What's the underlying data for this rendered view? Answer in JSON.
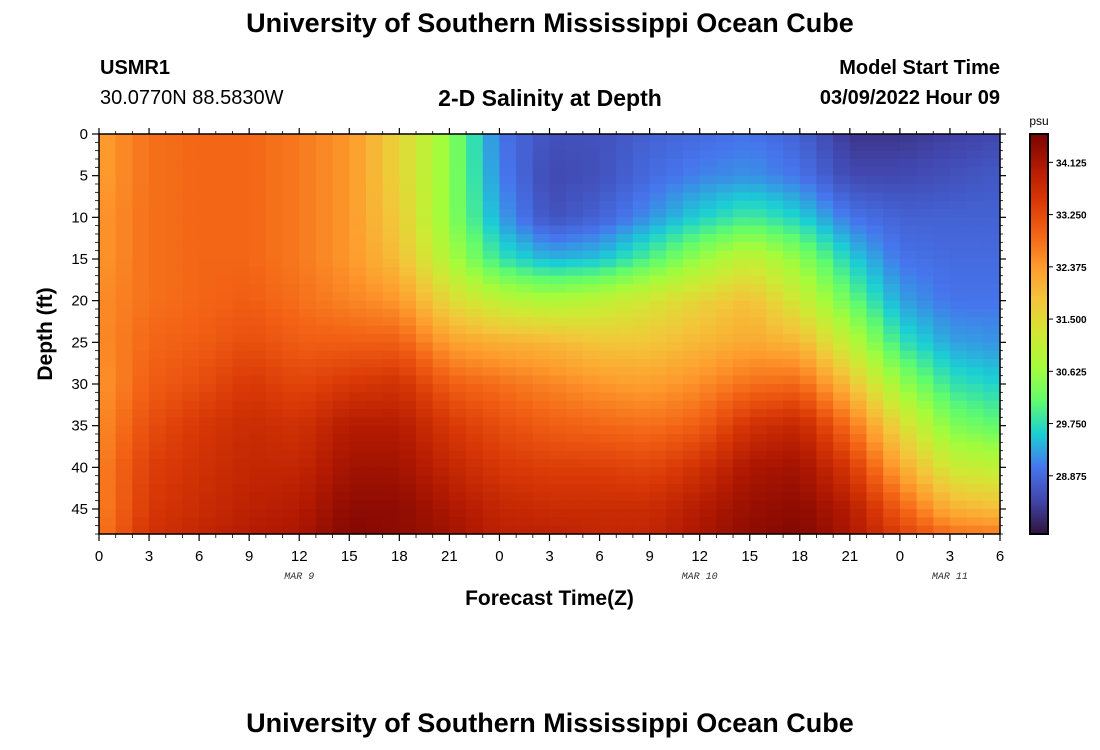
{
  "header": {
    "title": "University of Southern Mississippi Ocean Cube",
    "station_id": "USMR1",
    "station_coords": "30.0770N  88.5830W",
    "plot_title": "2-D Salinity at Depth",
    "model_start_label": "Model Start Time",
    "model_start_value": "03/09/2022 Hour 09"
  },
  "footer": {
    "title": "University of Southern Mississippi Ocean Cube"
  },
  "chart_data": {
    "type": "heatmap",
    "title": "2-D Salinity at Depth",
    "xlabel": "Forecast Time(Z)",
    "ylabel": "Depth (ft)",
    "x_unit": "hours from Mar 9 00Z",
    "xlim": [
      0,
      54
    ],
    "ylim": [
      0,
      48
    ],
    "x_ticks": [
      {
        "h": 0,
        "label": "0"
      },
      {
        "h": 3,
        "label": "3"
      },
      {
        "h": 6,
        "label": "6"
      },
      {
        "h": 9,
        "label": "9"
      },
      {
        "h": 12,
        "label": "12"
      },
      {
        "h": 15,
        "label": "15"
      },
      {
        "h": 18,
        "label": "18"
      },
      {
        "h": 21,
        "label": "21"
      },
      {
        "h": 24,
        "label": "0"
      },
      {
        "h": 27,
        "label": "3"
      },
      {
        "h": 30,
        "label": "6"
      },
      {
        "h": 33,
        "label": "9"
      },
      {
        "h": 36,
        "label": "12"
      },
      {
        "h": 39,
        "label": "15"
      },
      {
        "h": 42,
        "label": "18"
      },
      {
        "h": 45,
        "label": "21"
      },
      {
        "h": 48,
        "label": "0"
      },
      {
        "h": 51,
        "label": "3"
      },
      {
        "h": 54,
        "label": "6"
      }
    ],
    "date_labels": [
      {
        "h": 12,
        "label": "MAR 9"
      },
      {
        "h": 36,
        "label": "MAR 10"
      },
      {
        "h": 51,
        "label": "MAR 11"
      }
    ],
    "y_ticks": [
      0,
      5,
      10,
      15,
      20,
      25,
      30,
      35,
      40,
      45
    ],
    "colorbar": {
      "unit": "psu",
      "min": 27.9,
      "max": 34.6,
      "tick_values": [
        34.125,
        33.25,
        32.375,
        31.5,
        30.625,
        29.75,
        28.875
      ],
      "tick_labels": [
        "34.125",
        "33.250",
        "32.375",
        "31.500",
        "30.625",
        "29.750",
        "28.875"
      ],
      "colors": [
        "#30123b",
        "#4145ab",
        "#4675ed",
        "#1bcfd4",
        "#61fc6c",
        "#a4fc3b",
        "#d1e834",
        "#f3c63a",
        "#fe9b2d",
        "#f36315",
        "#d93806",
        "#b11901",
        "#7a0403"
      ]
    },
    "depths": [
      0,
      5,
      10,
      15,
      20,
      25,
      30,
      35,
      40,
      45,
      48
    ],
    "grid_hours": [
      0,
      3,
      6,
      9,
      12,
      15,
      18,
      21,
      24,
      27,
      30,
      33,
      36,
      39,
      42,
      45,
      48,
      51,
      54
    ],
    "salinity": [
      [
        32.3,
        32.3,
        32.4,
        32.4,
        32.5,
        32.5,
        32.4,
        32.5,
        32.6,
        32.6,
        32.7
      ],
      [
        32.8,
        32.8,
        32.8,
        32.8,
        32.8,
        32.9,
        33.0,
        33.2,
        33.4,
        33.5,
        33.6
      ],
      [
        32.9,
        32.9,
        32.9,
        32.9,
        32.9,
        33.0,
        33.2,
        33.5,
        33.6,
        33.7,
        33.8
      ],
      [
        32.9,
        32.9,
        32.9,
        32.9,
        33.0,
        33.2,
        33.5,
        33.7,
        33.8,
        33.9,
        34.0
      ],
      [
        32.7,
        32.7,
        32.7,
        32.7,
        32.8,
        33.0,
        33.3,
        33.6,
        33.8,
        34.0,
        34.1
      ],
      [
        32.4,
        32.4,
        32.4,
        32.4,
        32.6,
        33.0,
        33.5,
        34.0,
        34.2,
        34.4,
        34.5
      ],
      [
        31.6,
        31.6,
        31.7,
        31.9,
        32.4,
        33.0,
        33.6,
        34.0,
        34.2,
        34.4,
        34.4
      ],
      [
        30.5,
        30.5,
        30.5,
        30.8,
        31.5,
        32.3,
        33.0,
        33.5,
        33.8,
        34.1,
        34.2
      ],
      [
        29.0,
        29.1,
        29.3,
        29.8,
        31.0,
        32.1,
        32.8,
        33.2,
        33.5,
        33.8,
        33.9
      ],
      [
        28.6,
        28.5,
        28.6,
        29.4,
        30.8,
        32.0,
        32.6,
        33.0,
        33.4,
        33.7,
        33.9
      ],
      [
        28.6,
        28.6,
        28.8,
        29.5,
        31.0,
        31.8,
        32.4,
        32.9,
        33.4,
        33.7,
        33.8
      ],
      [
        28.8,
        28.9,
        29.2,
        30.0,
        31.3,
        31.8,
        32.3,
        32.8,
        33.3,
        33.7,
        33.8
      ],
      [
        28.9,
        29.1,
        29.6,
        30.6,
        31.6,
        32.0,
        32.5,
        33.0,
        33.6,
        34.0,
        34.1
      ],
      [
        29.0,
        29.2,
        29.9,
        31.1,
        31.9,
        32.2,
        32.8,
        33.6,
        34.1,
        34.3,
        34.4
      ],
      [
        28.8,
        29.0,
        29.6,
        30.5,
        31.2,
        32.0,
        32.9,
        33.8,
        34.2,
        34.4,
        34.5
      ],
      [
        28.3,
        28.5,
        29.0,
        29.6,
        30.2,
        31.0,
        31.9,
        32.8,
        33.5,
        34.0,
        34.1
      ],
      [
        28.3,
        28.5,
        28.8,
        29.0,
        29.3,
        29.8,
        30.6,
        31.5,
        32.2,
        33.0,
        33.4
      ],
      [
        28.4,
        28.6,
        28.8,
        28.9,
        29.0,
        29.3,
        29.8,
        30.4,
        31.2,
        32.1,
        32.8
      ],
      [
        28.5,
        28.7,
        28.8,
        28.9,
        29.0,
        29.2,
        29.6,
        30.1,
        31.0,
        31.9,
        32.7
      ]
    ]
  }
}
